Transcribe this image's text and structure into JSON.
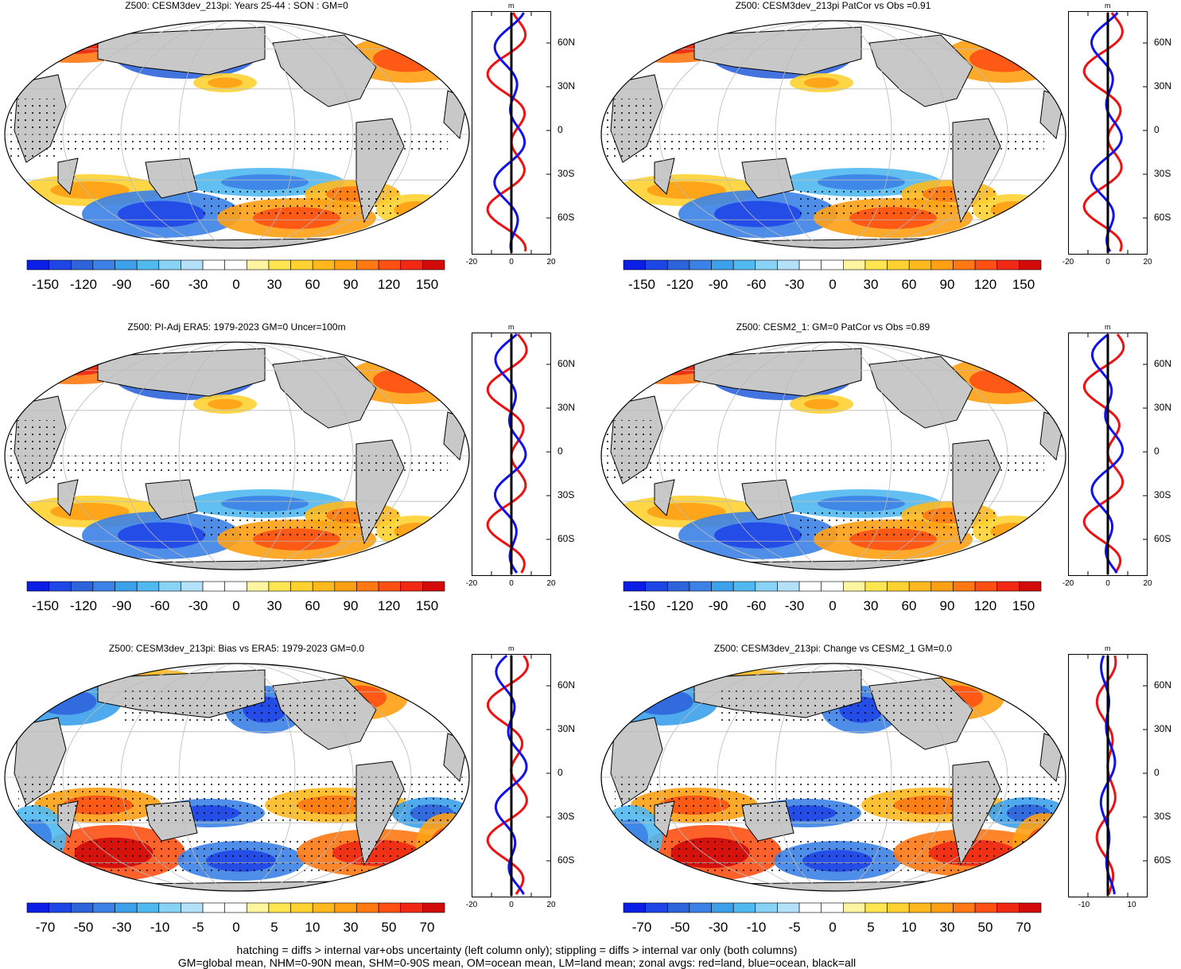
{
  "panels": [
    {
      "title": "Z500: CESM3dev_213pi: Years 25-44 : SON : GM=0",
      "colorbar_labels": [
        "-150",
        "-120",
        "-90",
        "-60",
        "-30",
        "0",
        "30",
        "60",
        "90",
        "120",
        "150"
      ],
      "zonal_ticks": [
        "-20",
        "0",
        "20"
      ],
      "zonal_unit": "m",
      "lat_labels": [
        "60N",
        "30N",
        "0",
        "30S",
        "60S"
      ]
    },
    {
      "title": "Z500: CESM3dev_213pi PatCor vs Obs =0.91",
      "colorbar_labels": [
        "-150",
        "-120",
        "-90",
        "-60",
        "-30",
        "0",
        "30",
        "60",
        "90",
        "120",
        "150"
      ],
      "zonal_ticks": [
        "-20",
        "0",
        "20"
      ],
      "zonal_unit": "m",
      "lat_labels": [
        "60N",
        "30N",
        "0",
        "30S",
        "60S"
      ]
    },
    {
      "title": "Z500: PI-Adj ERA5: 1979-2023 GM=0 Uncer=100m",
      "colorbar_labels": [
        "-150",
        "-120",
        "-90",
        "-60",
        "-30",
        "0",
        "30",
        "60",
        "90",
        "120",
        "150"
      ],
      "zonal_ticks": [
        "-20",
        "0",
        "20"
      ],
      "zonal_unit": "m",
      "lat_labels": [
        "60N",
        "30N",
        "0",
        "30S",
        "60S"
      ]
    },
    {
      "title": "Z500: CESM2_1: GM=0 PatCor vs Obs =0.89",
      "colorbar_labels": [
        "-150",
        "-120",
        "-90",
        "-60",
        "-30",
        "0",
        "30",
        "60",
        "90",
        "120",
        "150"
      ],
      "zonal_ticks": [
        "-20",
        "0",
        "20"
      ],
      "zonal_unit": "m",
      "lat_labels": [
        "60N",
        "30N",
        "0",
        "30S",
        "60S"
      ]
    },
    {
      "title": "Z500: CESM3dev_213pi: Bias vs ERA5: 1979-2023  GM=0.0",
      "colorbar_labels": [
        "-70",
        "-50",
        "-30",
        "-10",
        "-5",
        "0",
        "5",
        "10",
        "30",
        "50",
        "70"
      ],
      "zonal_ticks": [
        "-20",
        "0",
        "20"
      ],
      "zonal_unit": "m",
      "lat_labels": [
        "60N",
        "30N",
        "0",
        "30S",
        "60S"
      ]
    },
    {
      "title": "Z500: CESM3dev_213pi: Change vs CESM2_1 GM=0.0",
      "colorbar_labels": [
        "-70",
        "-50",
        "-30",
        "-10",
        "-5",
        "0",
        "5",
        "10",
        "30",
        "50",
        "70"
      ],
      "zonal_ticks": [
        "-10",
        "10"
      ],
      "zonal_unit": "m",
      "lat_labels": [
        "60N",
        "30N",
        "0",
        "30S",
        "60S"
      ]
    }
  ],
  "colors": {
    "palette": [
      "#0a1ee6",
      "#1e46e6",
      "#2d64dc",
      "#3c82e6",
      "#3ca0eb",
      "#50b9f0",
      "#87d2f5",
      "#b4e1fa",
      "#ffffff",
      "#ffffff",
      "#fff5a0",
      "#ffe650",
      "#ffd232",
      "#ffb91e",
      "#ffa014",
      "#ff7814",
      "#ff5014",
      "#f02814",
      "#d20a0a"
    ],
    "land": "#c8c8c8",
    "zonal_land": "#ee1111",
    "zonal_ocean": "#1111ee",
    "zonal_all": "#000000"
  },
  "footer": {
    "line1": "hatching = diffs > internal var+obs uncertainty (left column only); stippling = diffs > internal var only (both columns)",
    "line2": "GM=global mean, NHM=0-90N mean, SHM=0-90S mean, OM=ocean mean, LM=land mean; zonal avgs: red=land, blue=ocean, black=all"
  }
}
